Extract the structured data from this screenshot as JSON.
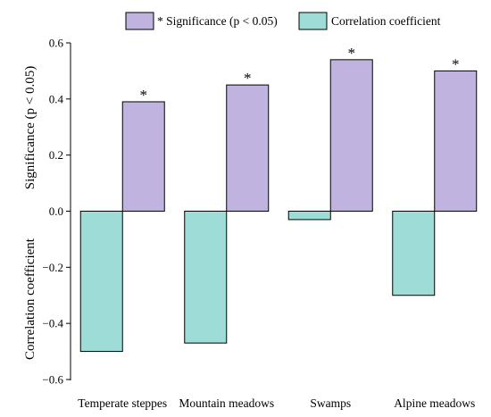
{
  "chart_data": {
    "type": "bar",
    "categories": [
      "Temperate steppes",
      "Mountain meadows",
      "Swamps",
      "Alpine meadows"
    ],
    "series": [
      {
        "name": "Correlation coefficient",
        "values": [
          -0.5,
          -0.47,
          -0.03,
          -0.3
        ],
        "color": "#9ddcd7"
      },
      {
        "name": "* Significance (p < 0.05)",
        "values": [
          0.39,
          0.45,
          0.54,
          0.5
        ],
        "color": "#c0b3e0"
      }
    ],
    "significance_markers": [
      "*",
      "*",
      "*",
      "*"
    ],
    "ylabel_top": "Significance (p < 0.05)",
    "ylabel_bottom": "Correlation coefficient",
    "ylim": [
      -0.6,
      0.6
    ],
    "yticks": [
      0.6,
      0.4,
      0.2,
      0.0,
      -0.2,
      -0.4,
      -0.6
    ],
    "ytick_labels": [
      "0.6",
      "0.4",
      "0.2",
      "0.0",
      "−0.2",
      "−0.4",
      "−0.6"
    ],
    "legend_placement": "top",
    "grid": false
  }
}
